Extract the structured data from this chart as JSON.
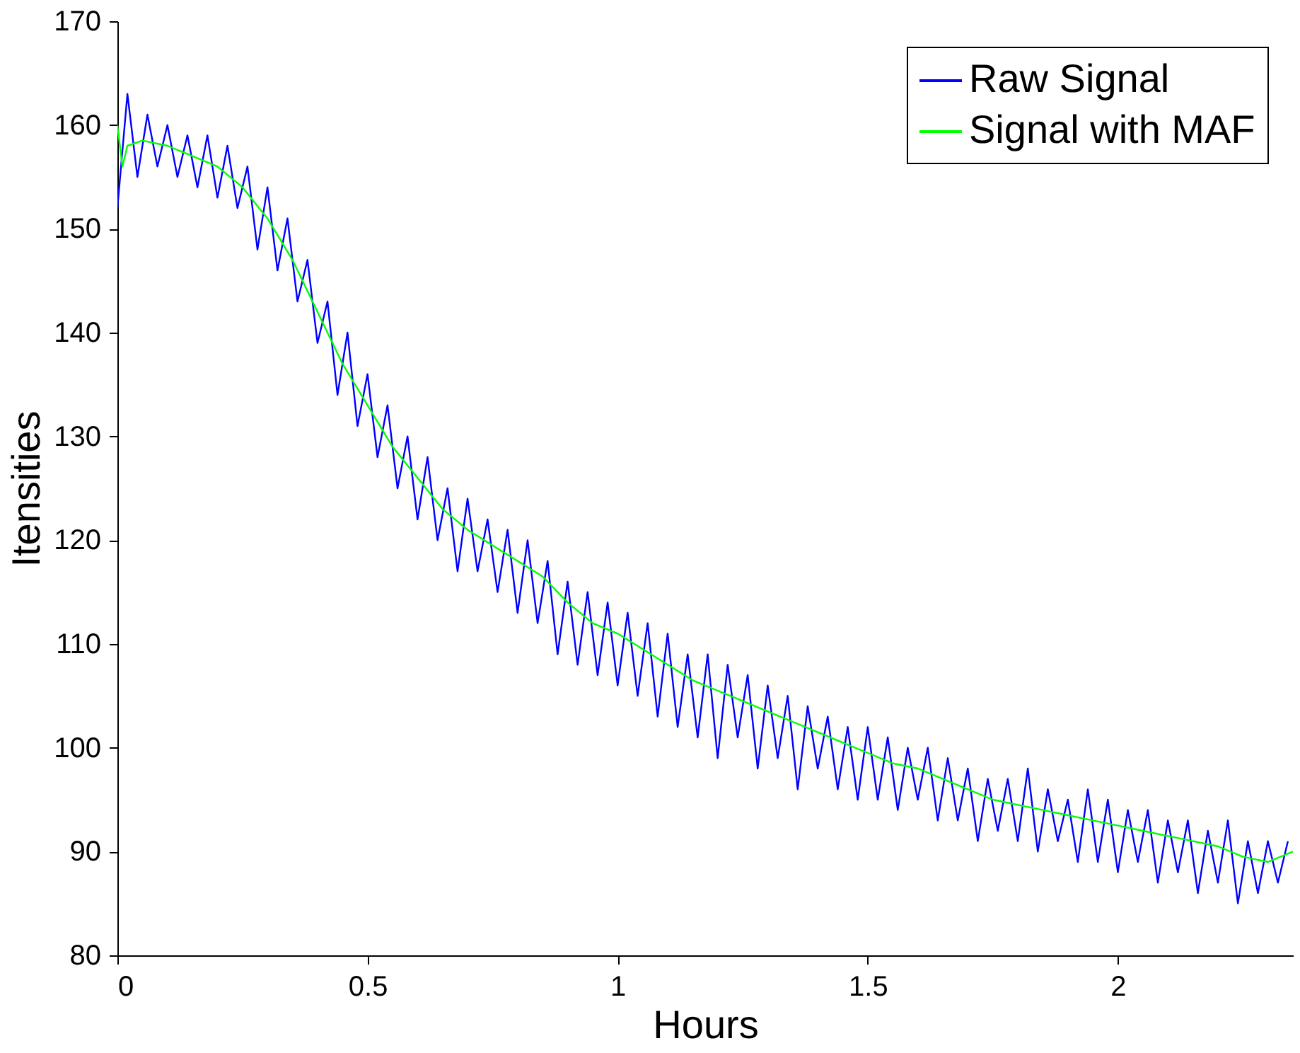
{
  "chart_data": {
    "type": "line",
    "xlabel": "Hours",
    "ylabel": "Itensities",
    "xlim": [
      0,
      2.35
    ],
    "xticks": [
      0,
      0.5,
      1,
      1.5,
      2
    ],
    "ylim": [
      80,
      170
    ],
    "yticks": [
      80,
      90,
      100,
      110,
      120,
      130,
      140,
      150,
      160,
      170
    ],
    "grid": false,
    "legend": "top right",
    "series": [
      {
        "name": "Raw Signal",
        "color": "#0000ff",
        "x": [
          0,
          0.02,
          0.04,
          0.06,
          0.08,
          0.1,
          0.12,
          0.14,
          0.16,
          0.18,
          0.2,
          0.22,
          0.24,
          0.26,
          0.28,
          0.3,
          0.32,
          0.34,
          0.36,
          0.38,
          0.4,
          0.42,
          0.44,
          0.46,
          0.48,
          0.5,
          0.52,
          0.54,
          0.56,
          0.58,
          0.6,
          0.62,
          0.64,
          0.66,
          0.68,
          0.7,
          0.72,
          0.74,
          0.76,
          0.78,
          0.8,
          0.82,
          0.84,
          0.86,
          0.88,
          0.9,
          0.92,
          0.94,
          0.96,
          0.98,
          1.0,
          1.02,
          1.04,
          1.06,
          1.08,
          1.1,
          1.12,
          1.14,
          1.16,
          1.18,
          1.2,
          1.22,
          1.24,
          1.26,
          1.28,
          1.3,
          1.32,
          1.34,
          1.36,
          1.38,
          1.4,
          1.42,
          1.44,
          1.46,
          1.48,
          1.5,
          1.52,
          1.54,
          1.56,
          1.58,
          1.6,
          1.62,
          1.64,
          1.66,
          1.68,
          1.7,
          1.72,
          1.74,
          1.76,
          1.78,
          1.8,
          1.82,
          1.84,
          1.86,
          1.88,
          1.9,
          1.92,
          1.94,
          1.96,
          1.98,
          2.0,
          2.02,
          2.04,
          2.06,
          2.08,
          2.1,
          2.12,
          2.14,
          2.16,
          2.18,
          2.2,
          2.22,
          2.24,
          2.26,
          2.28,
          2.3,
          2.32,
          2.34
        ],
        "values": [
          152,
          163,
          155,
          161,
          156,
          160,
          155,
          159,
          154,
          159,
          153,
          158,
          152,
          156,
          148,
          154,
          146,
          151,
          143,
          147,
          139,
          143,
          134,
          140,
          131,
          136,
          128,
          133,
          125,
          130,
          122,
          128,
          120,
          125,
          117,
          124,
          117,
          122,
          115,
          121,
          113,
          120,
          112,
          118,
          109,
          116,
          108,
          115,
          107,
          114,
          106,
          113,
          105,
          112,
          103,
          111,
          102,
          109,
          101,
          109,
          99,
          108,
          101,
          107,
          98,
          106,
          99,
          105,
          96,
          104,
          98,
          103,
          96,
          102,
          95,
          102,
          95,
          101,
          94,
          100,
          95,
          100,
          93,
          99,
          93,
          98,
          91,
          97,
          92,
          97,
          91,
          98,
          90,
          96,
          91,
          95,
          89,
          96,
          89,
          95,
          88,
          94,
          89,
          94,
          87,
          93,
          88,
          93,
          86,
          92,
          87,
          93,
          85,
          91,
          86,
          91,
          87,
          91
        ]
      },
      {
        "name": "Signal with MAF",
        "color": "#00ff00",
        "x": [
          0,
          0.01,
          0.02,
          0.05,
          0.1,
          0.15,
          0.2,
          0.25,
          0.3,
          0.35,
          0.4,
          0.45,
          0.5,
          0.55,
          0.6,
          0.65,
          0.7,
          0.75,
          0.8,
          0.85,
          0.9,
          0.95,
          1.0,
          1.05,
          1.1,
          1.15,
          1.2,
          1.25,
          1.3,
          1.35,
          1.4,
          1.45,
          1.5,
          1.55,
          1.6,
          1.65,
          1.7,
          1.75,
          1.8,
          1.85,
          1.9,
          1.95,
          2.0,
          2.05,
          2.1,
          2.15,
          2.2,
          2.25,
          2.3,
          2.35
        ],
        "values": [
          160,
          156,
          158,
          158.5,
          158,
          157,
          156,
          154,
          151,
          147,
          142,
          137,
          133,
          129,
          126,
          123,
          121,
          119.5,
          118,
          116.5,
          114,
          112,
          111,
          109.5,
          108,
          106.5,
          105.5,
          104.5,
          103.5,
          102.5,
          101.5,
          100.5,
          99.5,
          98.5,
          98,
          97,
          96,
          95,
          94.5,
          94,
          93.5,
          93,
          92.5,
          92,
          91.5,
          91,
          90.5,
          89.5,
          89,
          90
        ]
      }
    ]
  }
}
